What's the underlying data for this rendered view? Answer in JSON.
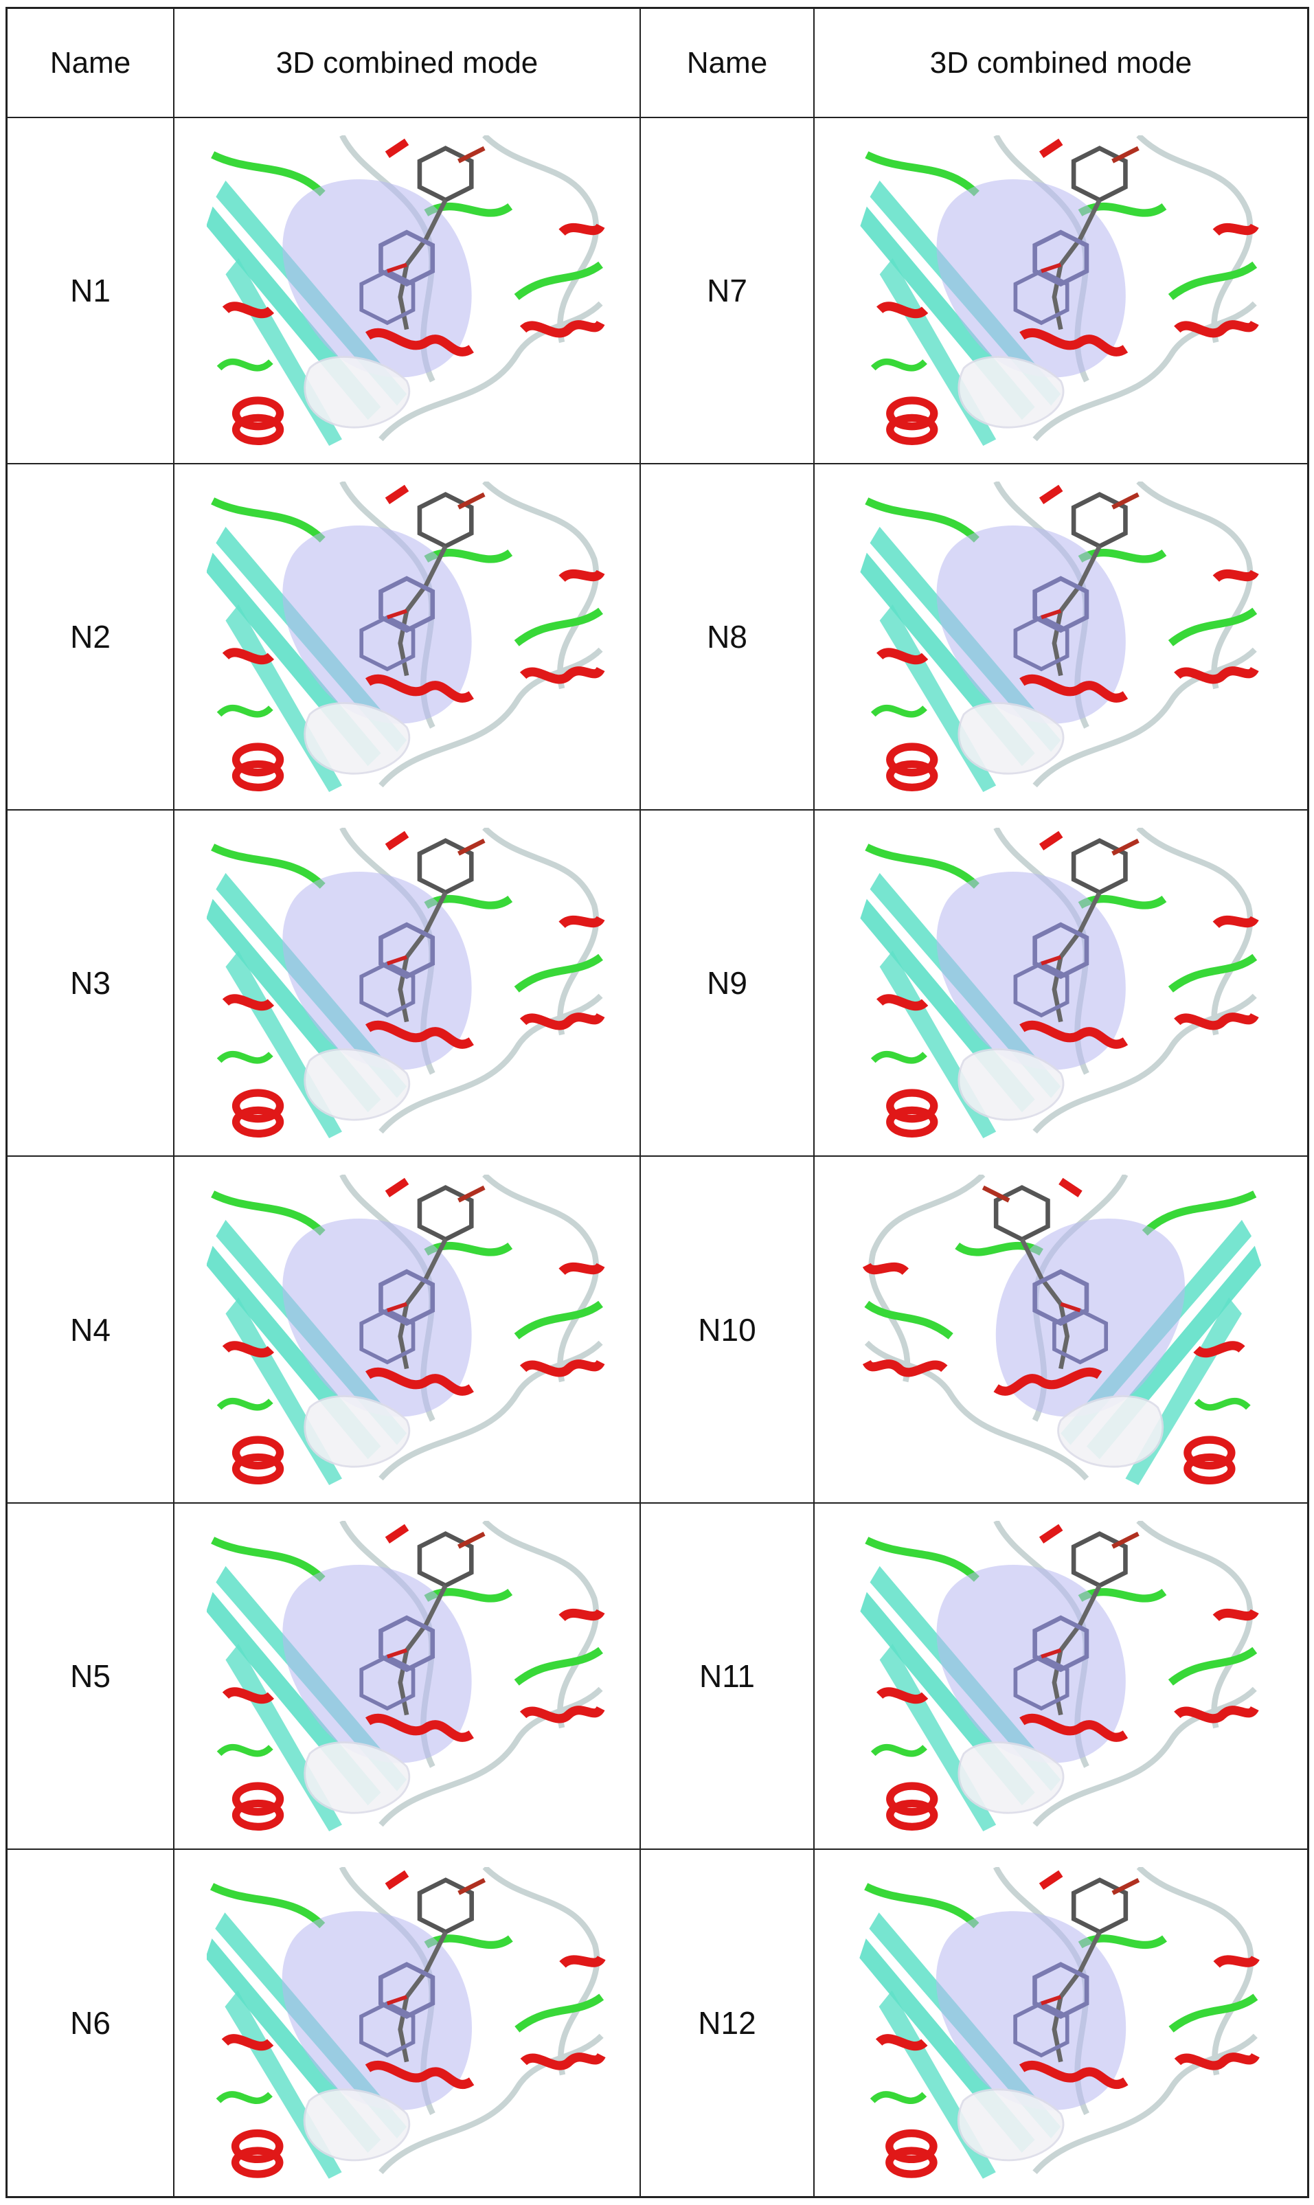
{
  "table": {
    "header": [
      "Name",
      "3D combined mode",
      "Name",
      "3D combined mode"
    ],
    "rows": [
      {
        "left": "N1",
        "right": "N7"
      },
      {
        "left": "N2",
        "right": "N8"
      },
      {
        "left": "N3",
        "right": "N9"
      },
      {
        "left": "N4",
        "right": "N10"
      },
      {
        "left": "N5",
        "right": "N11"
      },
      {
        "left": "N6",
        "right": "N12"
      }
    ]
  },
  "colors": {
    "helix": "#e01818",
    "strand": "#5fe0c8",
    "loop_green": "#38d838",
    "coil": "#c8d4d4",
    "surface": "#b8b8f0",
    "border": "#222222"
  }
}
